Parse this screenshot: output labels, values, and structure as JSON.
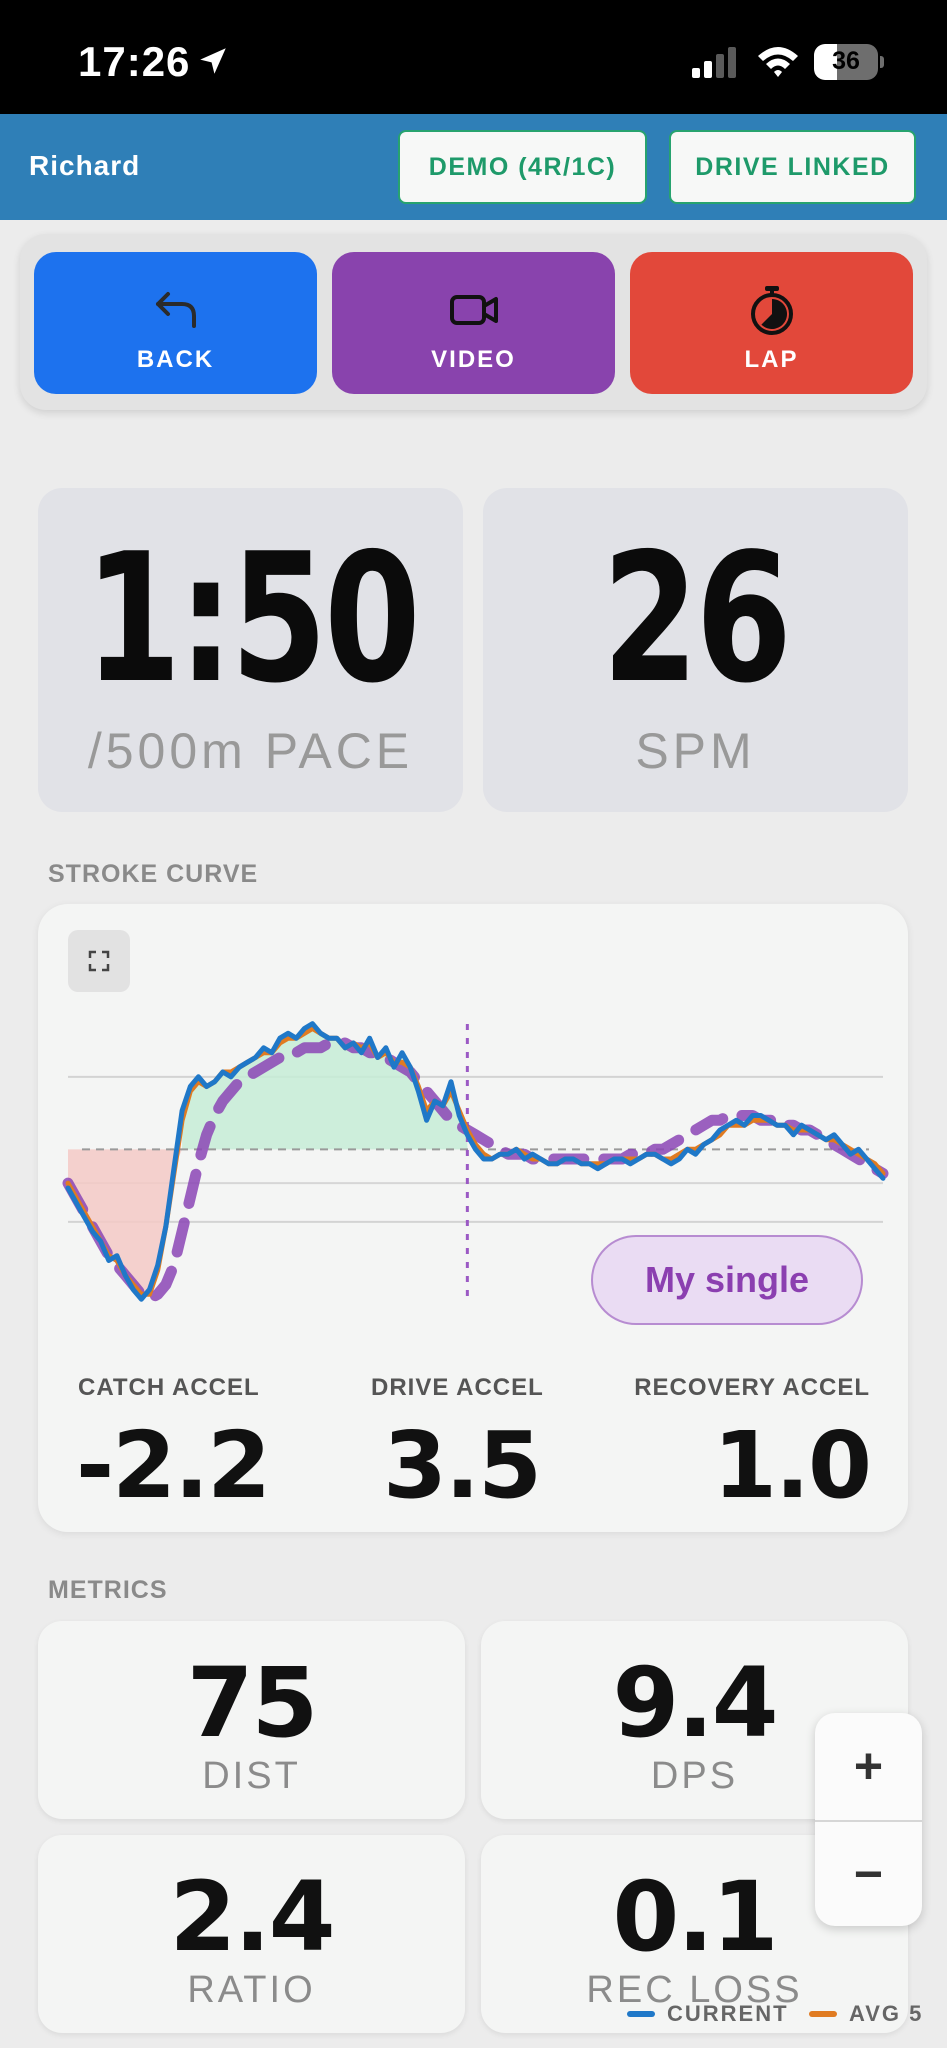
{
  "status_bar": {
    "time": "17:26",
    "battery": "36",
    "battery_level": 0.36
  },
  "header": {
    "user": "Richard",
    "demo_button": "DEMO (4R/1C)",
    "drive_button": "DRIVE LINKED"
  },
  "actions": {
    "back": "BACK",
    "video": "VIDEO",
    "lap": "LAP"
  },
  "main": {
    "pace": {
      "value": "1:50",
      "label": "/500m PACE"
    },
    "spm": {
      "value": "26",
      "label": "SPM"
    }
  },
  "stroke_curve": {
    "section_title": "STROKE CURVE",
    "series_pill": "My single",
    "catch": {
      "label": "CATCH ACCEL",
      "value": "-2.2"
    },
    "drive": {
      "label": "DRIVE ACCEL",
      "value": "3.5"
    },
    "recovery": {
      "label": "RECOVERY ACCEL",
      "value": "1.0"
    }
  },
  "metrics": {
    "section_title": "METRICS",
    "items": [
      {
        "value": "75",
        "label": "DIST"
      },
      {
        "value": "9.4",
        "label": "DPS"
      },
      {
        "value": "2.4",
        "label": "RATIO"
      },
      {
        "value": "0.1",
        "label": "REC LOSS"
      }
    ]
  },
  "zoom": {
    "in": "+",
    "out": "−"
  },
  "legend": {
    "current": "CURRENT",
    "avg": "AVG 5"
  },
  "colors": {
    "header_bg": "#2f7fb7",
    "accent_green": "#1e9a6a",
    "back": "#1d72ee",
    "video": "#8943ad",
    "lap": "#e2483a",
    "current_series": "#1f78c8",
    "avg_series": "#e07b21",
    "reference_series": "#8b45b5"
  },
  "chart_data": {
    "type": "line",
    "title": "",
    "xlabel": "",
    "ylabel": "",
    "x": [
      0,
      1,
      2,
      3,
      4,
      5,
      6,
      7,
      8,
      9,
      10,
      11,
      12,
      13,
      14,
      15,
      16,
      17,
      18,
      19,
      20,
      21,
      22,
      23,
      24,
      25,
      26,
      27,
      28,
      29,
      30,
      31,
      32,
      33,
      34,
      35,
      36,
      37,
      38,
      39,
      40,
      41,
      42,
      43,
      44,
      45,
      46,
      47,
      48,
      49,
      50,
      51,
      52,
      53,
      54,
      55,
      56,
      57,
      58,
      59,
      60,
      61,
      62,
      63,
      64,
      65,
      66,
      67,
      68,
      69,
      70,
      71,
      72,
      73,
      74,
      75,
      76,
      77,
      78,
      79,
      80,
      81,
      82,
      83,
      84,
      85,
      86,
      87,
      88,
      89,
      90,
      91,
      92,
      93,
      94,
      95,
      96,
      97,
      98,
      99,
      100
    ],
    "drive_end_x": 49,
    "baseline_y": 0,
    "ylim": [
      -3.2,
      2.8
    ],
    "series": [
      {
        "name": "CURRENT",
        "values": [
          -0.8,
          -1.1,
          -1.4,
          -1.7,
          -1.9,
          -2.3,
          -2.2,
          -2.6,
          -2.9,
          -3.1,
          -2.9,
          -2.4,
          -1.6,
          -0.4,
          0.8,
          1.3,
          1.5,
          1.3,
          1.4,
          1.6,
          1.5,
          1.7,
          1.8,
          1.9,
          2.1,
          2.0,
          2.3,
          2.4,
          2.3,
          2.5,
          2.6,
          2.4,
          2.3,
          2.3,
          2.1,
          2.2,
          2.0,
          2.3,
          1.9,
          2.1,
          1.7,
          2.0,
          1.7,
          1.2,
          0.6,
          1.0,
          0.9,
          1.4,
          0.7,
          0.3,
          0.0,
          -0.2,
          -0.2,
          -0.1,
          -0.1,
          0.0,
          -0.2,
          -0.1,
          -0.2,
          -0.3,
          -0.3,
          -0.2,
          -0.2,
          -0.3,
          -0.3,
          -0.4,
          -0.3,
          -0.2,
          -0.2,
          -0.3,
          -0.2,
          -0.1,
          -0.1,
          -0.2,
          -0.3,
          -0.2,
          0.0,
          -0.1,
          0.1,
          0.2,
          0.4,
          0.5,
          0.6,
          0.5,
          0.7,
          0.7,
          0.6,
          0.5,
          0.5,
          0.3,
          0.5,
          0.4,
          0.3,
          0.2,
          0.3,
          0.1,
          -0.1,
          0.0,
          -0.2,
          -0.4,
          -0.6
        ]
      },
      {
        "name": "AVG 5",
        "values": [
          -0.7,
          -1.0,
          -1.3,
          -1.6,
          -1.9,
          -2.2,
          -2.3,
          -2.6,
          -2.8,
          -3.0,
          -3.0,
          -2.5,
          -1.6,
          -0.5,
          0.6,
          1.2,
          1.4,
          1.3,
          1.4,
          1.6,
          1.6,
          1.7,
          1.8,
          1.9,
          2.0,
          2.0,
          2.2,
          2.3,
          2.3,
          2.4,
          2.5,
          2.4,
          2.3,
          2.3,
          2.1,
          2.2,
          2.1,
          2.2,
          1.9,
          2.0,
          1.8,
          1.8,
          1.7,
          1.3,
          0.8,
          1.0,
          0.9,
          1.2,
          0.8,
          0.4,
          0.1,
          -0.1,
          -0.2,
          -0.1,
          -0.1,
          0.0,
          -0.1,
          -0.2,
          -0.2,
          -0.3,
          -0.3,
          -0.2,
          -0.2,
          -0.3,
          -0.3,
          -0.3,
          -0.3,
          -0.2,
          -0.2,
          -0.2,
          -0.2,
          -0.1,
          -0.1,
          -0.2,
          -0.2,
          -0.1,
          0.0,
          0.0,
          0.1,
          0.2,
          0.3,
          0.5,
          0.5,
          0.5,
          0.6,
          0.6,
          0.6,
          0.5,
          0.5,
          0.4,
          0.4,
          0.4,
          0.3,
          0.2,
          0.2,
          0.1,
          0.0,
          -0.1,
          -0.2,
          -0.3,
          -0.5
        ]
      },
      {
        "name": "My single",
        "values": [
          -0.7,
          -1.0,
          -1.3,
          -1.6,
          -1.9,
          -2.2,
          -2.4,
          -2.6,
          -2.8,
          -3.0,
          -3.1,
          -3.0,
          -2.8,
          -2.4,
          -1.7,
          -1.0,
          -0.3,
          0.3,
          0.7,
          1.0,
          1.2,
          1.4,
          1.5,
          1.6,
          1.7,
          1.8,
          1.9,
          2.0,
          2.0,
          2.1,
          2.1,
          2.1,
          2.2,
          2.2,
          2.2,
          2.1,
          2.1,
          2.0,
          2.0,
          1.9,
          1.8,
          1.7,
          1.6,
          1.4,
          1.2,
          1.0,
          0.8,
          0.6,
          0.5,
          0.4,
          0.3,
          0.2,
          0.1,
          0.0,
          -0.1,
          -0.1,
          -0.1,
          -0.2,
          -0.2,
          -0.2,
          -0.2,
          -0.2,
          -0.2,
          -0.2,
          -0.2,
          -0.2,
          -0.2,
          -0.2,
          -0.2,
          -0.1,
          -0.1,
          -0.1,
          0.0,
          0.0,
          0.1,
          0.2,
          0.3,
          0.4,
          0.5,
          0.6,
          0.6,
          0.7,
          0.7,
          0.7,
          0.7,
          0.6,
          0.6,
          0.6,
          0.5,
          0.5,
          0.4,
          0.4,
          0.3,
          0.2,
          0.1,
          0.0,
          -0.1,
          -0.2,
          -0.3,
          -0.4,
          -0.5
        ]
      }
    ]
  }
}
